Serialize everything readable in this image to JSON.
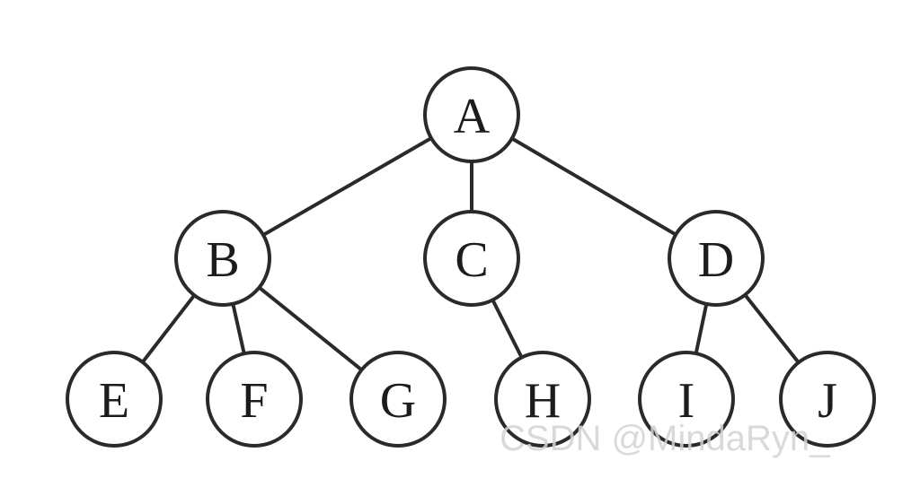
{
  "diagram": {
    "type": "tree",
    "nodes": [
      {
        "id": "A",
        "label": "A"
      },
      {
        "id": "B",
        "label": "B"
      },
      {
        "id": "C",
        "label": "C"
      },
      {
        "id": "D",
        "label": "D"
      },
      {
        "id": "E",
        "label": "E"
      },
      {
        "id": "F",
        "label": "F"
      },
      {
        "id": "G",
        "label": "G"
      },
      {
        "id": "H",
        "label": "H"
      },
      {
        "id": "I",
        "label": "I"
      },
      {
        "id": "J",
        "label": "J"
      }
    ],
    "edges": [
      {
        "from": "A",
        "to": "B"
      },
      {
        "from": "A",
        "to": "C"
      },
      {
        "from": "A",
        "to": "D"
      },
      {
        "from": "B",
        "to": "E"
      },
      {
        "from": "B",
        "to": "F"
      },
      {
        "from": "B",
        "to": "G"
      },
      {
        "from": "C",
        "to": "H"
      },
      {
        "from": "D",
        "to": "I"
      },
      {
        "from": "D",
        "to": "J"
      }
    ]
  },
  "watermark": {
    "text": "CSDN @MindaRyn_"
  },
  "colors": {
    "line": "#2a2a2a",
    "node_fill": "#ffffff",
    "text": "#1c1c1c",
    "watermark": "#d2d2d2"
  }
}
